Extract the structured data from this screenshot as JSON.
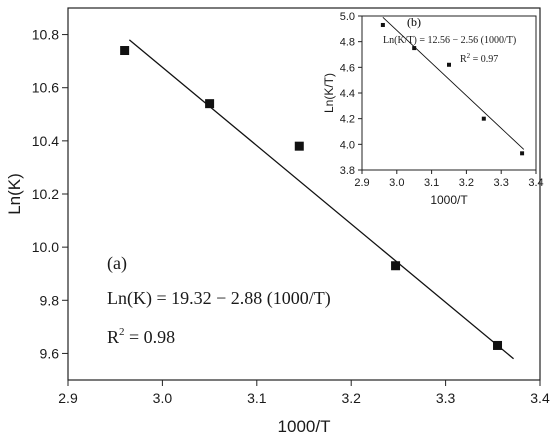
{
  "chart_data": [
    {
      "type": "scatter",
      "xlabel": "1000/T",
      "ylabel": "Ln(K)",
      "xlim": [
        2.9,
        3.4
      ],
      "ylim": [
        9.5,
        10.9
      ],
      "xticks": [
        "2.9",
        "3.0",
        "3.1",
        "3.2",
        "3.3",
        "3.4"
      ],
      "yticks": [
        "9.6",
        "9.8",
        "10.0",
        "10.2",
        "10.4",
        "10.6",
        "10.8"
      ],
      "points": [
        {
          "x": 2.96,
          "y": 10.74
        },
        {
          "x": 3.05,
          "y": 10.54
        },
        {
          "x": 3.145,
          "y": 10.38
        },
        {
          "x": 3.247,
          "y": 9.93
        },
        {
          "x": 3.355,
          "y": 9.63
        }
      ],
      "fit_line": {
        "x0": 2.965,
        "y0": 10.78,
        "x1": 3.372,
        "y1": 9.58
      },
      "annotations": {
        "panel": "(a)",
        "equation": "Ln(K) = 19.32 − 2.88 (1000/T)",
        "r2_base": "R",
        "r2_sup": "2",
        "r2_rest": " = 0.98"
      },
      "grid": false,
      "legend": "none"
    },
    {
      "type": "scatter",
      "xlabel": "1000/T",
      "ylabel": "Ln(K/T)",
      "xlim": [
        2.9,
        3.4
      ],
      "ylim": [
        3.8,
        5.0
      ],
      "xticks": [
        "2.9",
        "3.0",
        "3.1",
        "3.2",
        "3.3",
        "3.4"
      ],
      "yticks": [
        "3.8",
        "4.0",
        "4.2",
        "4.4",
        "4.6",
        "4.8",
        "5.0"
      ],
      "points": [
        {
          "x": 2.96,
          "y": 4.93
        },
        {
          "x": 3.05,
          "y": 4.75
        },
        {
          "x": 3.15,
          "y": 4.62
        },
        {
          "x": 3.25,
          "y": 4.2
        },
        {
          "x": 3.36,
          "y": 3.93
        }
      ],
      "fit_line": {
        "x0": 2.96,
        "y0": 4.99,
        "x1": 3.365,
        "y1": 3.96
      },
      "annotations": {
        "panel": "(b)",
        "equation": "Ln(K/T) = 12.56 − 2.56 (1000/T)",
        "r2_base": "R",
        "r2_sup": "2",
        "r2_rest": " = 0.97"
      },
      "grid": false,
      "legend": "none"
    }
  ]
}
